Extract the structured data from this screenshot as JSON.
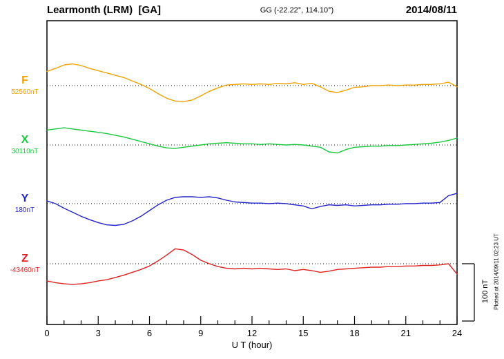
{
  "header": {
    "station": "Learmonth (LRM)  [GA]",
    "coords": "GG (-22.22°, 114.10°)",
    "date": "2014/08/11"
  },
  "axis": {
    "xlabel": "U T (hour)",
    "tick_labels": [
      "0",
      "3",
      "6",
      "9",
      "12",
      "15",
      "18",
      "21",
      "24"
    ],
    "scale_label": "100 nT"
  },
  "footer": {
    "plotted_at": "Plotted at 2014/09/11 02:23 UT"
  },
  "chart_data": {
    "type": "line",
    "title": "Learmonth (LRM) magnetogram 2014/08/11",
    "xlabel": "U T (hour)",
    "x_range": [
      0,
      24
    ],
    "x_major_tick_step": 3,
    "x_minor_tick_step": 1,
    "scale_bar_nT": 100,
    "grid": "dotted-baseline-per-series",
    "x_hours": [
      0,
      0.5,
      1,
      1.5,
      2,
      2.5,
      3,
      3.5,
      4,
      4.5,
      5,
      5.5,
      6,
      6.5,
      7,
      7.5,
      8,
      8.5,
      9,
      9.5,
      10,
      10.5,
      11,
      11.5,
      12,
      12.5,
      13,
      13.5,
      14,
      14.5,
      15,
      15.5,
      16,
      16.5,
      17,
      17.5,
      18,
      18.5,
      19,
      19.5,
      20,
      20.5,
      21,
      21.5,
      22,
      22.5,
      23,
      23.5,
      24
    ],
    "series": [
      {
        "name": "F",
        "baseline_label": "52560nT",
        "baseline_value_nT": 52560,
        "color": "#f0a202",
        "offsets_nT": [
          25,
          30,
          36,
          38,
          35,
          30,
          26,
          22,
          18,
          14,
          8,
          2,
          -5,
          -14,
          -22,
          -27,
          -28,
          -25,
          -18,
          -10,
          -4,
          1,
          2,
          3,
          2,
          3,
          2,
          4,
          3,
          5,
          2,
          4,
          -2,
          -10,
          -12,
          -8,
          -3,
          -2,
          0,
          0,
          1,
          0,
          1,
          1,
          2,
          2,
          3,
          6,
          -2
        ]
      },
      {
        "name": "X",
        "baseline_label": "30110nT",
        "baseline_value_nT": 30110,
        "color": "#17c83c",
        "offsets_nT": [
          26,
          28,
          30,
          28,
          26,
          24,
          22,
          20,
          17,
          14,
          10,
          6,
          2,
          -2,
          -5,
          -6,
          -4,
          -2,
          0,
          2,
          3,
          4,
          3,
          2,
          2,
          1,
          2,
          1,
          0,
          1,
          0,
          -2,
          -4,
          -12,
          -14,
          -8,
          -4,
          -3,
          -2,
          -2,
          -1,
          -1,
          0,
          1,
          2,
          3,
          5,
          8,
          12
        ]
      },
      {
        "name": "Y",
        "baseline_label": "180nT",
        "baseline_value_nT": 180,
        "color": "#2222cc",
        "offsets_nT": [
          5,
          0,
          -8,
          -15,
          -22,
          -28,
          -33,
          -37,
          -38,
          -36,
          -30,
          -22,
          -12,
          -2,
          6,
          11,
          12,
          12,
          11,
          12,
          10,
          6,
          3,
          2,
          1,
          1,
          0,
          1,
          0,
          -2,
          -4,
          -9,
          -5,
          -2,
          -3,
          -2,
          -4,
          -3,
          -2,
          -2,
          -1,
          -1,
          0,
          0,
          1,
          1,
          2,
          14,
          18
        ]
      },
      {
        "name": "Z",
        "baseline_label": "-43460nT",
        "baseline_value_nT": -43460,
        "color": "#e02020",
        "offsets_nT": [
          -30,
          -33,
          -35,
          -36,
          -35,
          -33,
          -30,
          -28,
          -24,
          -20,
          -15,
          -10,
          -4,
          5,
          15,
          26,
          24,
          16,
          6,
          0,
          -5,
          -8,
          -9,
          -8,
          -9,
          -8,
          -9,
          -10,
          -9,
          -12,
          -10,
          -12,
          -15,
          -13,
          -10,
          -9,
          -8,
          -7,
          -6,
          -6,
          -5,
          -5,
          -4,
          -4,
          -3,
          -3,
          -2,
          0,
          -18
        ]
      }
    ]
  }
}
